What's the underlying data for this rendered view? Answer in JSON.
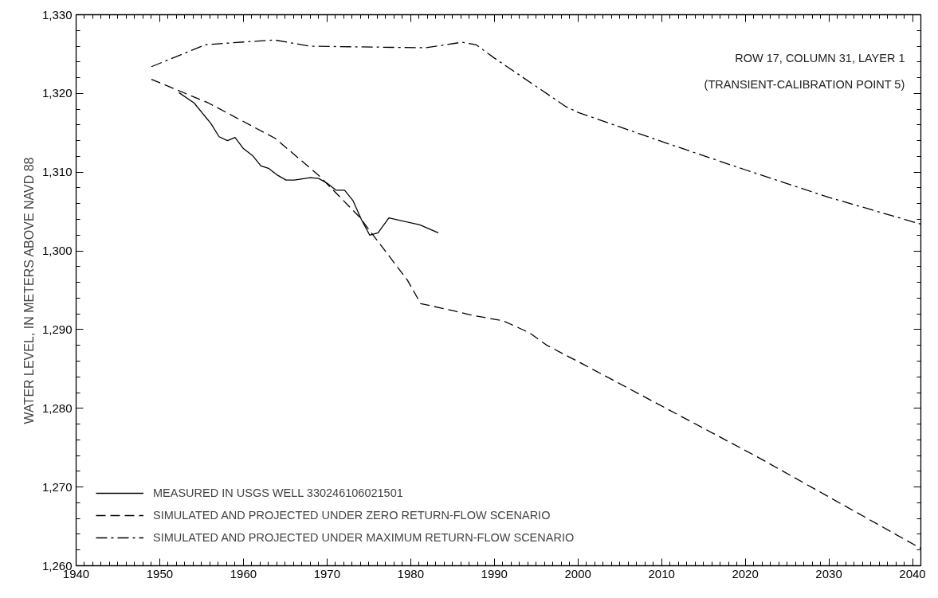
{
  "chart_data": {
    "type": "line",
    "ylabel": "WATER LEVEL, IN METERS ABOVE NAVD 88",
    "annotations": [
      "ROW 17, COLUMN 31, LAYER 1",
      "(TRANSIENT-CALIBRATION POINT 5)"
    ],
    "xlim": [
      1940,
      2041
    ],
    "ylim": [
      1260,
      1330
    ],
    "xticks": [
      1940,
      1950,
      1960,
      1970,
      1980,
      1990,
      2000,
      2010,
      2020,
      2030,
      2040
    ],
    "yticks": [
      {
        "value": 1260,
        "label": "1,260"
      },
      {
        "value": 1270,
        "label": "1,270"
      },
      {
        "value": 1280,
        "label": "1,280"
      },
      {
        "value": 1290,
        "label": "1,290"
      },
      {
        "value": 1300,
        "label": "1,300"
      },
      {
        "value": 1310,
        "label": "1,310"
      },
      {
        "value": 1320,
        "label": "1,320"
      },
      {
        "value": 1330,
        "label": "1,330"
      }
    ],
    "grid": false,
    "legend": "bottom left",
    "series": [
      {
        "name": "MEASURED IN USGS WELL 330246106021501",
        "color": "#000000",
        "line_style": "solid",
        "x": [
          1952.3,
          1954.1,
          1956.1,
          1957.1,
          1958.1,
          1959.0,
          1960.0,
          1961.1,
          1962.1,
          1963.0,
          1964.1,
          1965.1,
          1966.1,
          1968.0,
          1969.0,
          1970.0,
          1971.1,
          1972.1,
          1973.1,
          1974.1,
          1975.1,
          1976.1,
          1977.4,
          1981.1,
          1983.3
        ],
        "values": [
          1320.1,
          1318.8,
          1316.2,
          1314.5,
          1314.0,
          1314.4,
          1313.0,
          1312.1,
          1310.8,
          1310.5,
          1309.6,
          1309.0,
          1309.0,
          1309.3,
          1309.2,
          1308.6,
          1307.7,
          1307.7,
          1306.4,
          1304.0,
          1302.0,
          1302.3,
          1304.2,
          1303.3,
          1302.3
        ]
      },
      {
        "name": "SIMULATED AND PROJECTED UNDER ZERO RETURN-FLOW SCENARIO",
        "color": "#000000",
        "line_style": "dashed",
        "x": [
          1949.0,
          1955.8,
          1963.8,
          1969.0,
          1973.8,
          1979.6,
          1981.2,
          1985.1,
          1987.0,
          1991.1,
          1994.2,
          1996.3,
          2000.8,
          2021.5,
          2041.0
        ],
        "values": [
          1321.8,
          1318.8,
          1314.3,
          1309.6,
          1304.4,
          1296.3,
          1293.3,
          1292.4,
          1291.9,
          1291.1,
          1289.6,
          1288.0,
          1285.5,
          1273.8,
          1262.2
        ]
      },
      {
        "name": "SIMULATED AND PROJECTED UNDER MAXIMUM RETURN-FLOW SCENARIO",
        "color": "#000000",
        "line_style": "dashdot",
        "x": [
          1949.0,
          1955.5,
          1963.7,
          1968.0,
          1981.8,
          1986.1,
          1987.8,
          1990.0,
          1998.6,
          2000.0,
          2010.0,
          2020.0,
          2030.0,
          2041.0
        ],
        "values": [
          1323.4,
          1326.2,
          1326.8,
          1326.0,
          1325.8,
          1326.5,
          1326.2,
          1324.5,
          1318.3,
          1317.6,
          1313.9,
          1310.3,
          1306.8,
          1303.4
        ]
      }
    ]
  }
}
